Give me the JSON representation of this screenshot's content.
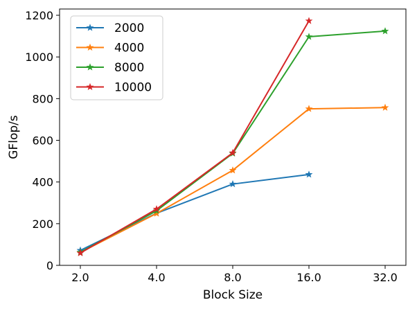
{
  "chart_data": {
    "type": "line",
    "x": [
      "2.0",
      "4.0",
      "8.0",
      "16.0",
      "32.0"
    ],
    "xlabel": "Block Size",
    "ylabel": "GFlop/s",
    "ylim": [
      0,
      1230
    ],
    "y_ticks": [
      "0",
      "200",
      "400",
      "600",
      "800",
      "1000",
      "1200"
    ],
    "grid": false,
    "legend_position": "top-left",
    "marker": "star",
    "series": [
      {
        "name": "2000",
        "color": "#1f77b4",
        "values": [
          72,
          250,
          390,
          436,
          null
        ]
      },
      {
        "name": "4000",
        "color": "#ff7f0e",
        "values": [
          62,
          249,
          456,
          751,
          757
        ]
      },
      {
        "name": "8000",
        "color": "#2ca02c",
        "values": [
          63,
          262,
          537,
          1097,
          1124
        ]
      },
      {
        "name": "10000",
        "color": "#d62728",
        "values": [
          59,
          270,
          540,
          1173,
          null
        ]
      }
    ]
  }
}
